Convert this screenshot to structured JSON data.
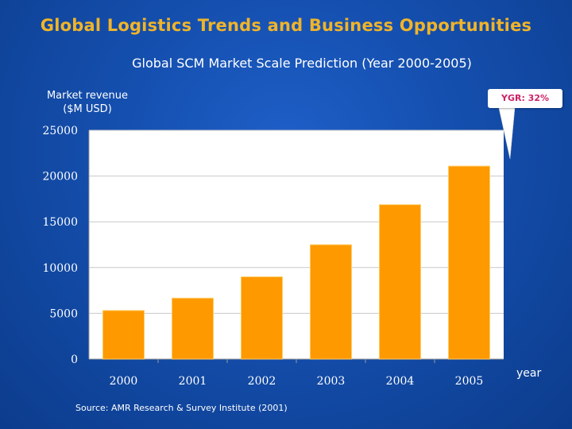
{
  "slide": {
    "title": "Global Logistics Trends and Business Opportunities",
    "source": "Source: AMR Research & Survey Institute (2001)"
  },
  "callout": {
    "text": "YGR: 32%"
  },
  "colors": {
    "bar": "#ff9900",
    "bar_edge": "#ffcc66",
    "title": "#f0b429",
    "plot_bg": "#ffffff",
    "grid": "#c8c8c8"
  },
  "chart_data": {
    "type": "bar",
    "title": "Global SCM Market Scale Prediction (Year 2000-2005)",
    "ylabel_line1": "Market revenue",
    "ylabel_line2": "($M USD)",
    "xlabel": "year",
    "categories": [
      "2000",
      "2001",
      "2002",
      "2003",
      "2004",
      "2005"
    ],
    "values": [
      5308,
      6658,
      8988,
      12494,
      16866,
      21083
    ],
    "ylim": [
      0,
      25000
    ],
    "yticks": [
      0,
      5000,
      10000,
      15000,
      20000,
      25000
    ],
    "grid": true
  }
}
